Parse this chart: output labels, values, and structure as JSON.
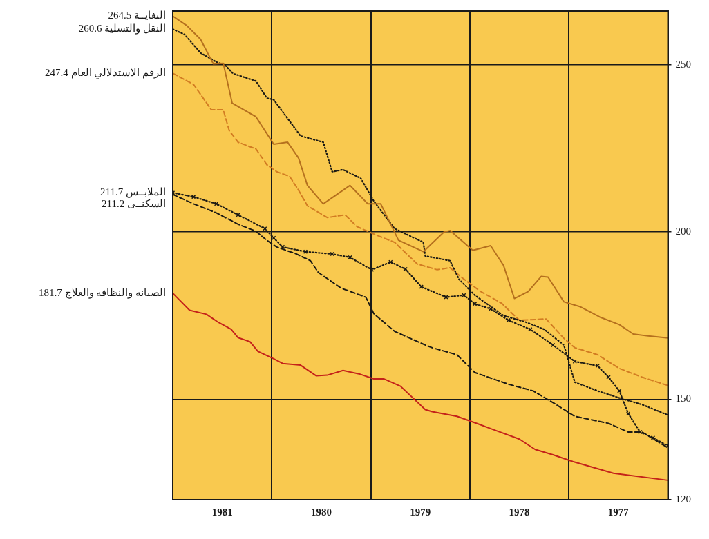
{
  "chart_data": {
    "type": "line",
    "xlim": [
      1982,
      1977
    ],
    "xticks": [
      {
        "value": 1981,
        "label": null
      },
      {
        "value": 1980,
        "label": null
      },
      {
        "value": 1979,
        "label": null
      },
      {
        "value": 1978,
        "label": null
      },
      {
        "value": 1981.5,
        "label": "1981"
      },
      {
        "value": 1980.5,
        "label": "1980"
      },
      {
        "value": 1979.5,
        "label": "1979"
      },
      {
        "value": 1978.5,
        "label": "1978"
      },
      {
        "value": 1977.5,
        "label": "1977"
      }
    ],
    "ylim": [
      120,
      266
    ],
    "yticks": [
      120,
      150,
      200,
      250
    ],
    "grid": true,
    "marker": "none",
    "series": [
      {
        "name": "التغايــة",
        "value_labels": [
          "264.5",
          null,
          null,
          null,
          null,
          null,
          null,
          null,
          null,
          null,
          null,
          null,
          null,
          null,
          null,
          null,
          null,
          null,
          null,
          null,
          null,
          null,
          null,
          null,
          null,
          null,
          null,
          null,
          null,
          null,
          null,
          null,
          null
        ],
        "color": "#b5701e",
        "line_style": "solid",
        "x": [
          1982,
          1981.86,
          1981.72,
          1981.59,
          1981.49,
          1981.4,
          1981.16,
          1980.98,
          1980.84,
          1980.73,
          1980.64,
          1980.48,
          1980.21,
          1980.03,
          1979.9,
          1979.72,
          1979.47,
          1979.26,
          1979.2,
          1978.97,
          1978.79,
          1978.66,
          1978.55,
          1978.41,
          1978.28,
          1978.21,
          1978.05,
          1977.89,
          1977.69,
          1977.49,
          1977.35,
          1977.2,
          1977
        ],
        "values": [
          264.5,
          261.7,
          257.6,
          250.2,
          250.4,
          238.5,
          234.4,
          226.2,
          226.8,
          222.1,
          213.9,
          208.4,
          213.9,
          208.4,
          208.4,
          197.5,
          194.1,
          200,
          200.4,
          194.5,
          195.9,
          190,
          180.1,
          182.2,
          186.7,
          186.5,
          179.1,
          177.7,
          174.6,
          172.3,
          169.5,
          168.9,
          168.3
        ]
      },
      {
        "name": "النقل والتسلية",
        "value_labels": [
          "260.6",
          null,
          null,
          null,
          null,
          null,
          null,
          null,
          null,
          null,
          null,
          null,
          null,
          null,
          null,
          null,
          null,
          null,
          null,
          null,
          null,
          null,
          null,
          null,
          null,
          null,
          null,
          null,
          null,
          null
        ],
        "color": "#1c1a14",
        "line_style": "dotted",
        "x": [
          1982,
          1981.88,
          1981.72,
          1981.56,
          1981.47,
          1981.39,
          1981.16,
          1981.05,
          1980.98,
          1980.71,
          1980.48,
          1980.39,
          1980.28,
          1980.1,
          1979.97,
          1979.76,
          1979.47,
          1979.45,
          1979.2,
          1979.11,
          1978.95,
          1978.66,
          1978.43,
          1978.25,
          1978.05,
          1977.94,
          1977.71,
          1977.49,
          1977.26,
          1977
        ],
        "values": [
          260.6,
          259,
          253.5,
          250.8,
          249.8,
          247.3,
          245.1,
          240,
          239.5,
          228.7,
          226.8,
          218,
          218.6,
          216,
          209.2,
          201,
          196.9,
          192.8,
          191.4,
          185.9,
          181.1,
          175,
          173,
          170.9,
          166.2,
          155.1,
          152.5,
          150.4,
          148.4,
          145.3
        ]
      },
      {
        "name": "الرقم الاستدلالي العام",
        "value_labels": [
          "247.4",
          null,
          null,
          null,
          null,
          null,
          null,
          null,
          null,
          null,
          null,
          null,
          null,
          null,
          null,
          null,
          null,
          null,
          null,
          null,
          null,
          null,
          null,
          null,
          null,
          null,
          null,
          null,
          null,
          null,
          null
        ],
        "color": "#d27c22",
        "line_style": "dashed",
        "x": [
          1982,
          1981.79,
          1981.61,
          1981.49,
          1981.43,
          1981.34,
          1981.16,
          1981.05,
          1980.95,
          1980.82,
          1980.73,
          1980.64,
          1980.44,
          1980.26,
          1980.14,
          1979.94,
          1979.76,
          1979.53,
          1979.33,
          1979.2,
          1979.06,
          1978.89,
          1978.68,
          1978.5,
          1978.23,
          1978.05,
          1977.94,
          1977.71,
          1977.49,
          1977.26,
          1977
        ],
        "values": [
          247.4,
          244.1,
          236.5,
          236.5,
          230.3,
          226.8,
          224.8,
          220.1,
          218,
          216.6,
          212.5,
          207.8,
          204.3,
          205.1,
          201.6,
          199,
          196.9,
          190.4,
          188.7,
          189.3,
          185.9,
          182.2,
          178.7,
          173.6,
          174,
          168.2,
          165.4,
          163.3,
          159.2,
          156.6,
          154.1
        ]
      },
      {
        "name": "الملابــس",
        "value_labels": [
          "211.7",
          null,
          null,
          null,
          null,
          null,
          null,
          null,
          null,
          null,
          null,
          null,
          null,
          null,
          null,
          null,
          null,
          null,
          null,
          null,
          null,
          null,
          null,
          null,
          null,
          null,
          null,
          null,
          null
        ],
        "color": "#1c1a14",
        "line_style": "dotted",
        "marker": "cross",
        "x": [
          1982,
          1981.79,
          1981.56,
          1981.34,
          1981.07,
          1980.98,
          1980.89,
          1980.66,
          1980.39,
          1980.21,
          1979.99,
          1979.8,
          1979.65,
          1979.49,
          1979.24,
          1979.06,
          1978.95,
          1978.79,
          1978.61,
          1978.39,
          1978.16,
          1977.94,
          1977.71,
          1977.6,
          1977.49,
          1977.4,
          1977.28,
          1977.15,
          1977
        ],
        "values": [
          211.7,
          210.5,
          208.4,
          205.1,
          201,
          198.2,
          195.5,
          194.1,
          193.4,
          192.4,
          188.7,
          191,
          188.9,
          183.6,
          180.5,
          181.1,
          178.5,
          177,
          173.6,
          170.9,
          166.2,
          161.3,
          160,
          156.6,
          152.5,
          145.7,
          140.2,
          138.5,
          136.1
        ]
      },
      {
        "name": "السكنــى",
        "value_labels": [
          "211.2",
          null,
          null,
          null,
          null,
          null,
          null,
          null,
          null,
          null,
          null,
          null,
          null,
          null,
          null,
          null,
          null,
          null,
          null,
          null,
          null,
          null,
          null,
          null,
          null,
          null
        ],
        "color": "#1c1a14",
        "line_style": "dashed",
        "x": [
          1982,
          1981.79,
          1981.56,
          1981.34,
          1981.16,
          1981.05,
          1980.95,
          1980.75,
          1980.61,
          1980.53,
          1980.3,
          1980.05,
          1979.97,
          1979.76,
          1979.45,
          1979.38,
          1979.13,
          1978.95,
          1978.61,
          1978.36,
          1978.16,
          1977.94,
          1977.6,
          1977.4,
          1977.26,
          1977
        ],
        "values": [
          211.2,
          208.4,
          205.7,
          202.3,
          200.2,
          197.5,
          195.5,
          193.4,
          191.4,
          187.9,
          183.2,
          180.5,
          175.6,
          170.3,
          166.2,
          165.4,
          163.3,
          158,
          154.5,
          152.5,
          149,
          144.9,
          142.8,
          140.2,
          140.2,
          135.5
        ]
      },
      {
        "name": "الصيانة والنظافة والعلاج",
        "value_labels": [
          "181.7",
          null,
          null,
          null,
          null,
          null,
          null,
          null,
          null,
          null,
          null,
          null,
          null,
          null,
          null,
          null,
          null,
          null,
          null,
          null,
          null,
          null,
          null,
          null,
          null,
          null,
          null,
          null,
          null
        ],
        "color": "#c4221a",
        "line_style": "solid",
        "x": [
          1982,
          1981.83,
          1981.66,
          1981.54,
          1981.41,
          1981.34,
          1981.22,
          1981.14,
          1980.98,
          1980.89,
          1980.71,
          1980.55,
          1980.44,
          1980.28,
          1980.12,
          1979.97,
          1979.87,
          1979.7,
          1979.45,
          1979.38,
          1979.13,
          1978.93,
          1978.75,
          1978.5,
          1978.34,
          1978.16,
          1977.96,
          1977.55,
          1977
        ],
        "values": [
          181.7,
          176.6,
          175.4,
          173,
          170.9,
          168.4,
          167.2,
          164.3,
          162.1,
          160.7,
          160.2,
          157,
          157.2,
          158.6,
          157.6,
          156.1,
          156.1,
          153.9,
          146.9,
          146.3,
          144.9,
          142.8,
          140.8,
          138.1,
          135,
          133.4,
          131.4,
          127.9,
          125.8
        ]
      }
    ],
    "legend": false
  }
}
